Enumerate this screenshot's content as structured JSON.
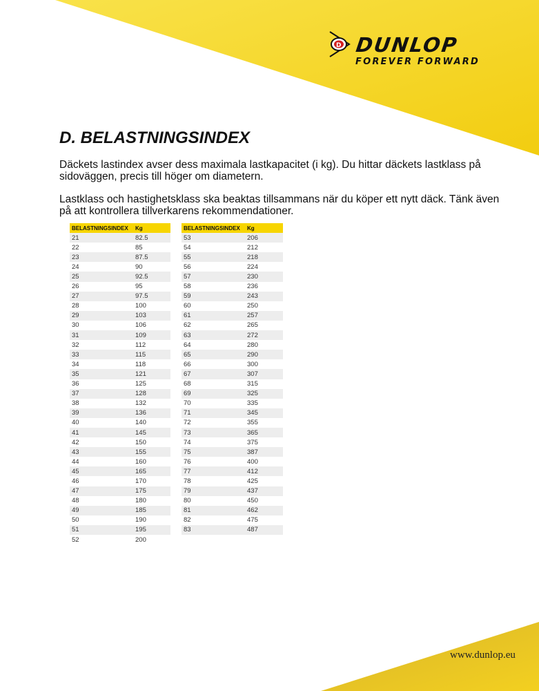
{
  "brand": {
    "name": "DUNLOP",
    "tagline": "FOREVER FORWARD",
    "color": "#f5d200"
  },
  "title": "D. BELASTNINGSINDEX",
  "para1": "Däckets lastindex avser dess maximala lastkapacitet (i kg). Du hittar däckets lastklass på sidoväggen, precis till höger om diametern.",
  "para2": "Lastklass och hastighetsklass ska beaktas tillsammans när du köper ett nytt däck. Tänk även på att kontrollera tillverkarens rekommendationer.",
  "table_headers": [
    "BELASTNINGSINDEX",
    "Kg"
  ],
  "table_left": [
    [
      "21",
      "82.5"
    ],
    [
      "22",
      "85"
    ],
    [
      "23",
      "87.5"
    ],
    [
      "24",
      "90"
    ],
    [
      "25",
      "92.5"
    ],
    [
      "26",
      "95"
    ],
    [
      "27",
      "97.5"
    ],
    [
      "28",
      "100"
    ],
    [
      "29",
      "103"
    ],
    [
      "30",
      "106"
    ],
    [
      "31",
      "109"
    ],
    [
      "32",
      "112"
    ],
    [
      "33",
      "115"
    ],
    [
      "34",
      "118"
    ],
    [
      "35",
      "121"
    ],
    [
      "36",
      "125"
    ],
    [
      "37",
      "128"
    ],
    [
      "38",
      "132"
    ],
    [
      "39",
      "136"
    ],
    [
      "40",
      "140"
    ],
    [
      "41",
      "145"
    ],
    [
      "42",
      "150"
    ],
    [
      "43",
      "155"
    ],
    [
      "44",
      "160"
    ],
    [
      "45",
      "165"
    ],
    [
      "46",
      "170"
    ],
    [
      "47",
      "175"
    ],
    [
      "48",
      "180"
    ],
    [
      "49",
      "185"
    ],
    [
      "50",
      "190"
    ],
    [
      "51",
      "195"
    ],
    [
      "52",
      "200"
    ]
  ],
  "table_right": [
    [
      "53",
      "206"
    ],
    [
      "54",
      "212"
    ],
    [
      "55",
      "218"
    ],
    [
      "56",
      "224"
    ],
    [
      "57",
      "230"
    ],
    [
      "58",
      "236"
    ],
    [
      "59",
      "243"
    ],
    [
      "60",
      "250"
    ],
    [
      "61",
      "257"
    ],
    [
      "62",
      "265"
    ],
    [
      "63",
      "272"
    ],
    [
      "64",
      "280"
    ],
    [
      "65",
      "290"
    ],
    [
      "66",
      "300"
    ],
    [
      "67",
      "307"
    ],
    [
      "68",
      "315"
    ],
    [
      "69",
      "325"
    ],
    [
      "70",
      "335"
    ],
    [
      "71",
      "345"
    ],
    [
      "72",
      "355"
    ],
    [
      "73",
      "365"
    ],
    [
      "74",
      "375"
    ],
    [
      "75",
      "387"
    ],
    [
      "76",
      "400"
    ],
    [
      "77",
      "412"
    ],
    [
      "78",
      "425"
    ],
    [
      "79",
      "437"
    ],
    [
      "80",
      "450"
    ],
    [
      "81",
      "462"
    ],
    [
      "82",
      "475"
    ],
    [
      "83",
      "487"
    ]
  ],
  "footer_url": "www.dunlop.eu"
}
